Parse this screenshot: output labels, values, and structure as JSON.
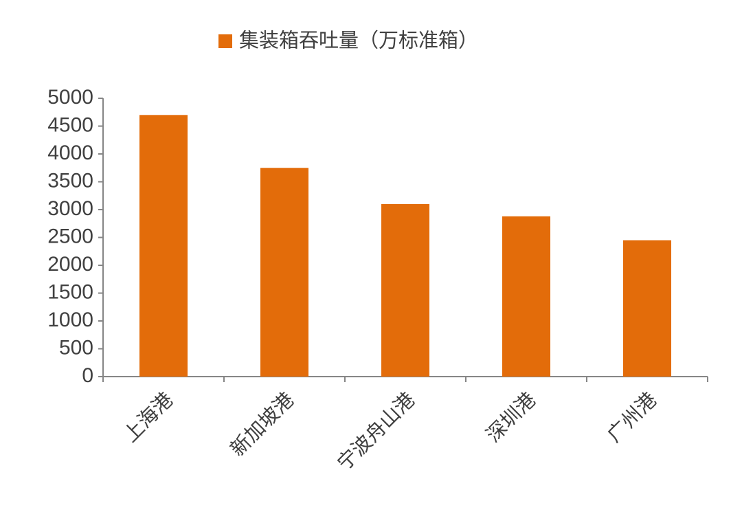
{
  "chart_data": {
    "type": "bar",
    "categories": [
      "上海港",
      "新加坡港",
      "宁波舟山港",
      "深圳港",
      "广州港"
    ],
    "series": [
      {
        "name": "集装箱吞吐量（万标准箱）",
        "color": "#e36c0a",
        "values": [
          4700,
          3750,
          3100,
          2880,
          2450
        ]
      }
    ],
    "ylim": [
      0,
      5000
    ],
    "yticks": [
      0,
      500,
      1000,
      1500,
      2000,
      2500,
      3000,
      3500,
      4000,
      4500,
      5000
    ],
    "legend": "top",
    "grid": false
  }
}
